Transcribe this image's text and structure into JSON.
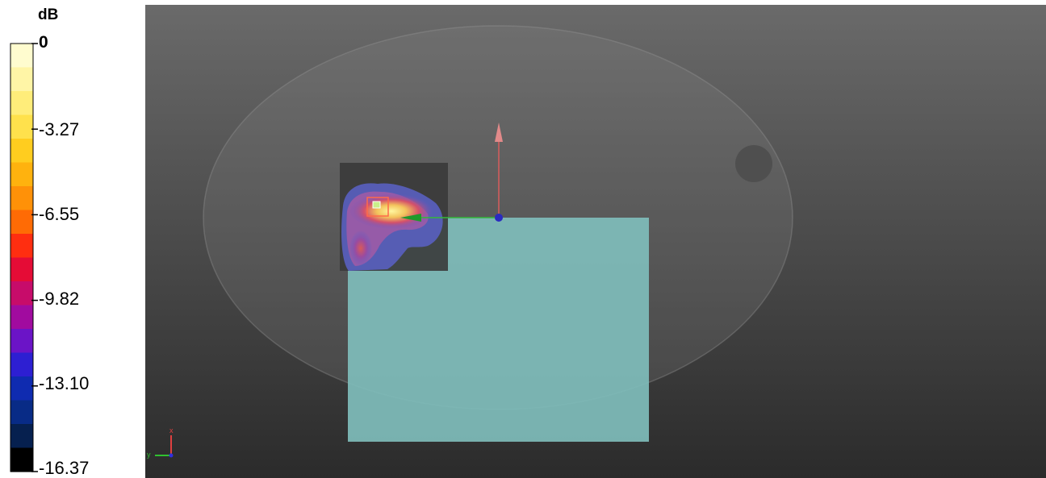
{
  "legend": {
    "unit": "dB",
    "max_label": "0",
    "tick_labels": [
      "-3.27",
      "-6.55",
      "-9.82",
      "-13.10",
      "-16.37"
    ],
    "color_steps": [
      "#fffccf",
      "#fff5a6",
      "#ffed7a",
      "#ffe14c",
      "#ffcd1f",
      "#ffb20e",
      "#ff9108",
      "#ff6b05",
      "#ff2e10",
      "#e50c36",
      "#c70c6a",
      "#a10b9f",
      "#6b14c7",
      "#2d1fd2",
      "#0f2bb0",
      "#082b86",
      "#06204f",
      "#000000"
    ]
  },
  "scene": {
    "background_top": "#6a6a6a",
    "background_bottom": "#2d2d2d",
    "body_color": "#7a7a7a",
    "antenna_plate_color": "#7fbdbb",
    "triad_labels": {
      "x": "x",
      "y": "y"
    }
  }
}
